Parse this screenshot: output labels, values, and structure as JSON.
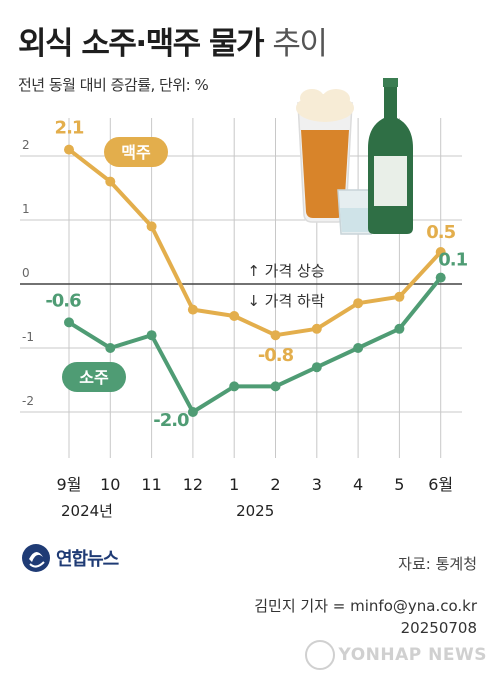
{
  "title_bold": "외식 소주·맥주 물가",
  "title_light": "추이",
  "subtitle": "전년 동월 대비 증감률, 단위: %",
  "source": "자료: 통계청",
  "byline": "김민지 기자 = minfo@yna.co.kr",
  "date": "20250708",
  "logo_text": "연합뉴스",
  "watermark": "YONHAP NEWS",
  "colors": {
    "beer": "#e3ae4c",
    "soju": "#4f9c74",
    "grid": "#c8c8c8",
    "zero": "#444444"
  },
  "chart_data": {
    "type": "line",
    "categories": [
      "9월",
      "10",
      "11",
      "12",
      "1",
      "2",
      "3",
      "4",
      "5",
      "6월"
    ],
    "year_labels": [
      "2024년",
      "2025"
    ],
    "yticks": [
      "2",
      "1",
      "0",
      "-1",
      "-2"
    ],
    "ylim": [
      -2.5,
      2.3
    ],
    "series": [
      {
        "name": "맥주",
        "values": [
          2.1,
          1.6,
          0.9,
          -0.4,
          -0.5,
          -0.8,
          -0.7,
          -0.3,
          -0.2,
          0.5
        ],
        "labels": [
          "2.1",
          "",
          "",
          "",
          "",
          "-0.8",
          "",
          "",
          "",
          "0.5"
        ]
      },
      {
        "name": "소주",
        "values": [
          -0.6,
          -1.0,
          -0.8,
          -2.0,
          -1.6,
          -1.6,
          -1.3,
          -1.0,
          -0.7,
          0.1
        ],
        "labels": [
          "-0.6",
          "",
          "",
          "-2.0",
          "",
          "",
          "",
          "",
          "",
          "0.1"
        ]
      }
    ],
    "annotations": {
      "up": "↑ 가격 상승",
      "down": "↓ 가격 하락"
    }
  }
}
